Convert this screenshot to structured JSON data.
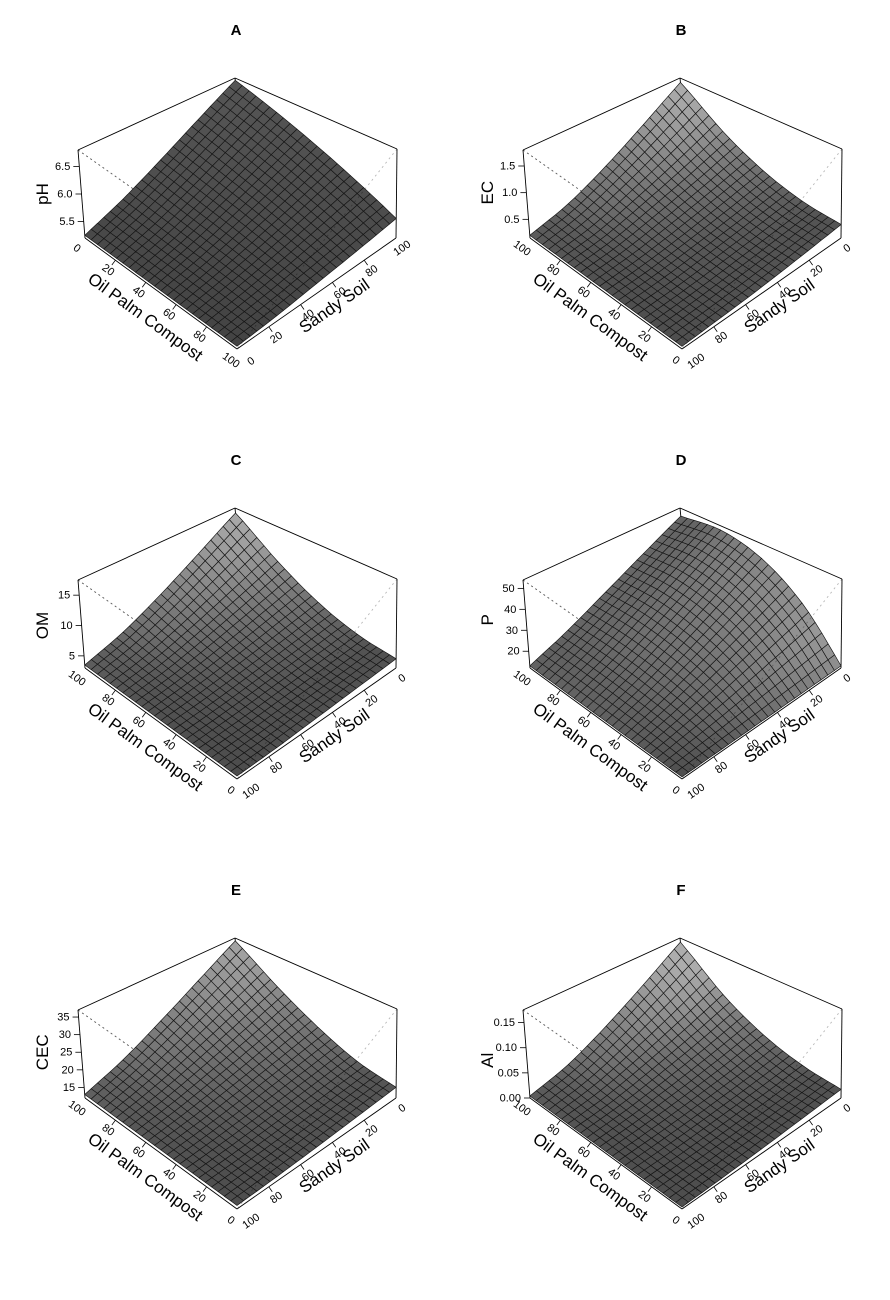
{
  "figure": {
    "background": "#ffffff"
  },
  "chart_data": [
    {
      "type": "3d-surface",
      "letter": "A",
      "z_label": "pH",
      "x_label": "Oil Palm Compost",
      "y_label": "Sandy Soil",
      "axes_reversed": false,
      "x_tick_labels": [
        "0",
        "20",
        "40",
        "60",
        "80",
        "100"
      ],
      "y_tick_labels": [
        "0",
        "20",
        "40",
        "60",
        "80",
        "100"
      ],
      "z_ticks": {
        "values": [
          5.5,
          6.0,
          6.5
        ],
        "labels": [
          "5.5",
          "6.0",
          "6.5"
        ]
      },
      "zlim": [
        5.2,
        6.8
      ],
      "opc_levels": [
        0,
        25,
        50,
        75,
        100
      ],
      "ss_levels": [
        0,
        25,
        50,
        75,
        100
      ],
      "z_grid": [
        [
          5.25,
          5.52,
          5.88,
          6.3,
          6.75
        ],
        [
          5.25,
          5.46,
          5.75,
          6.09,
          6.45
        ],
        [
          5.25,
          5.41,
          5.63,
          5.88,
          6.15
        ],
        [
          5.25,
          5.36,
          5.5,
          5.67,
          5.85
        ],
        [
          5.25,
          5.3,
          5.38,
          5.46,
          5.55
        ]
      ],
      "shade": {
        "base": 0.26,
        "gain": 0.04,
        "neg_gain": 0.1
      }
    },
    {
      "type": "3d-surface",
      "letter": "B",
      "z_label": "EC",
      "x_label": "Oil Palm Compost",
      "y_label": "Sandy Soil",
      "axes_reversed": true,
      "x_tick_labels": [
        "100",
        "80",
        "60",
        "40",
        "20",
        "0"
      ],
      "y_tick_labels": [
        "100",
        "80",
        "60",
        "40",
        "20",
        "0"
      ],
      "z_ticks": {
        "values": [
          0.5,
          1.0,
          1.5
        ],
        "labels": [
          "0.5",
          "1.0",
          "1.5"
        ]
      },
      "zlim": [
        0.15,
        1.8
      ],
      "opc_levels": [
        0,
        25,
        50,
        75,
        100
      ],
      "ss_levels": [
        0,
        25,
        50,
        75,
        100
      ],
      "z_grid": [
        [
          0.4,
          0.33,
          0.27,
          0.23,
          0.2
        ],
        [
          0.44,
          0.36,
          0.29,
          0.23,
          0.2
        ],
        [
          0.63,
          0.48,
          0.35,
          0.25,
          0.2
        ],
        [
          1.03,
          0.74,
          0.5,
          0.3,
          0.2
        ],
        [
          1.7,
          1.18,
          0.73,
          0.39,
          0.2
        ]
      ],
      "shade": {
        "base": 0.3,
        "gain": 0.13,
        "neg_gain": 0.5
      }
    },
    {
      "type": "3d-surface",
      "letter": "C",
      "z_label": "OM",
      "x_label": "Oil Palm Compost",
      "y_label": "Sandy Soil",
      "axes_reversed": true,
      "x_tick_labels": [
        "100",
        "80",
        "60",
        "40",
        "20",
        "0"
      ],
      "y_tick_labels": [
        "100",
        "80",
        "60",
        "40",
        "20",
        "0"
      ],
      "z_ticks": {
        "values": [
          5,
          10,
          15
        ],
        "labels": [
          "5",
          "10",
          "15"
        ]
      },
      "zlim": [
        3,
        17.5
      ],
      "opc_levels": [
        0,
        25,
        50,
        75,
        100
      ],
      "ss_levels": [
        0,
        25,
        50,
        75,
        100
      ],
      "z_grid": [
        [
          4.5,
          4.2,
          3.9,
          3.6,
          3.5
        ],
        [
          5.0,
          4.5,
          4.1,
          3.7,
          3.5
        ],
        [
          6.9,
          5.8,
          4.8,
          4.0,
          3.5
        ],
        [
          10.7,
          8.3,
          6.2,
          4.5,
          3.5
        ],
        [
          16.5,
          12.2,
          8.4,
          5.4,
          3.5
        ]
      ],
      "shade": {
        "base": 0.3,
        "gain": 0.13,
        "neg_gain": 0.5
      }
    },
    {
      "type": "3d-surface",
      "letter": "D",
      "z_label": "P",
      "x_label": "Oil Palm Compost",
      "y_label": "Sandy Soil",
      "axes_reversed": true,
      "x_tick_labels": [
        "100",
        "80",
        "60",
        "40",
        "20",
        "0"
      ],
      "y_tick_labels": [
        "100",
        "80",
        "60",
        "40",
        "20",
        "0"
      ],
      "z_ticks": {
        "values": [
          20,
          30,
          40,
          50
        ],
        "labels": [
          "20",
          "30",
          "40",
          "50"
        ]
      },
      "zlim": [
        12,
        54
      ],
      "opc_levels": [
        0,
        25,
        50,
        75,
        100
      ],
      "ss_levels": [
        0,
        25,
        50,
        75,
        100
      ],
      "z_grid": [
        [
          13.0,
          13.0,
          13.0,
          13.0,
          13.0
        ],
        [
          33.3,
          27.4,
          21.8,
          16.9,
          13.0
        ],
        [
          46.2,
          36.5,
          27.4,
          19.3,
          13.0
        ],
        [
          51.6,
          40.3,
          29.8,
          20.3,
          13.0
        ],
        [
          49.3,
          38.7,
          28.8,
          19.9,
          13.0
        ]
      ],
      "shade": {
        "base": 0.3,
        "gain": 0.13,
        "neg_gain": 0.5
      }
    },
    {
      "type": "3d-surface",
      "letter": "E",
      "z_label": "CEC",
      "x_label": "Oil Palm Compost",
      "y_label": "Sandy Soil",
      "axes_reversed": true,
      "x_tick_labels": [
        "100",
        "80",
        "60",
        "40",
        "20",
        "0"
      ],
      "y_tick_labels": [
        "100",
        "80",
        "60",
        "40",
        "20",
        "0"
      ],
      "z_ticks": {
        "values": [
          15,
          20,
          25,
          30,
          35
        ],
        "labels": [
          "15",
          "20",
          "25",
          "30",
          "35"
        ]
      },
      "zlim": [
        12,
        37
      ],
      "opc_levels": [
        0,
        25,
        50,
        75,
        100
      ],
      "ss_levels": [
        0,
        25,
        50,
        75,
        100
      ],
      "z_grid": [
        [
          15.0,
          14.4,
          13.8,
          13.3,
          13.0
        ],
        [
          16.3,
          15.3,
          14.3,
          13.5,
          13.0
        ],
        [
          20.3,
          18.0,
          15.9,
          14.2,
          13.0
        ],
        [
          26.8,
          22.5,
          18.6,
          15.3,
          13.0
        ],
        [
          36.0,
          28.8,
          22.3,
          16.8,
          13.0
        ]
      ],
      "shade": {
        "base": 0.3,
        "gain": 0.13,
        "neg_gain": 0.5
      }
    },
    {
      "type": "3d-surface",
      "letter": "F",
      "z_label": "Al",
      "x_label": "Oil Palm Compost",
      "y_label": "Sandy Soil",
      "axes_reversed": true,
      "x_tick_labels": [
        "100",
        "80",
        "60",
        "40",
        "20",
        "0"
      ],
      "y_tick_labels": [
        "100",
        "80",
        "60",
        "40",
        "20",
        "0"
      ],
      "z_ticks": {
        "values": [
          0.0,
          0.05,
          0.1,
          0.15
        ],
        "labels": [
          "0.00",
          "0.05",
          "0.10",
          "0.15"
        ]
      },
      "zlim": [
        0,
        0.175
      ],
      "opc_levels": [
        0,
        25,
        50,
        75,
        100
      ],
      "ss_levels": [
        0,
        25,
        50,
        75,
        100
      ],
      "z_grid": [
        [
          0.017,
          0.013,
          0.009,
          0.006,
          0.004
        ],
        [
          0.022,
          0.015,
          0.01,
          0.006,
          0.004
        ],
        [
          0.042,
          0.028,
          0.017,
          0.009,
          0.004
        ],
        [
          0.086,
          0.057,
          0.033,
          0.014,
          0.004
        ],
        [
          0.165,
          0.109,
          0.061,
          0.024,
          0.004
        ]
      ],
      "shade": {
        "base": 0.3,
        "gain": 0.13,
        "neg_gain": 0.5
      }
    }
  ]
}
